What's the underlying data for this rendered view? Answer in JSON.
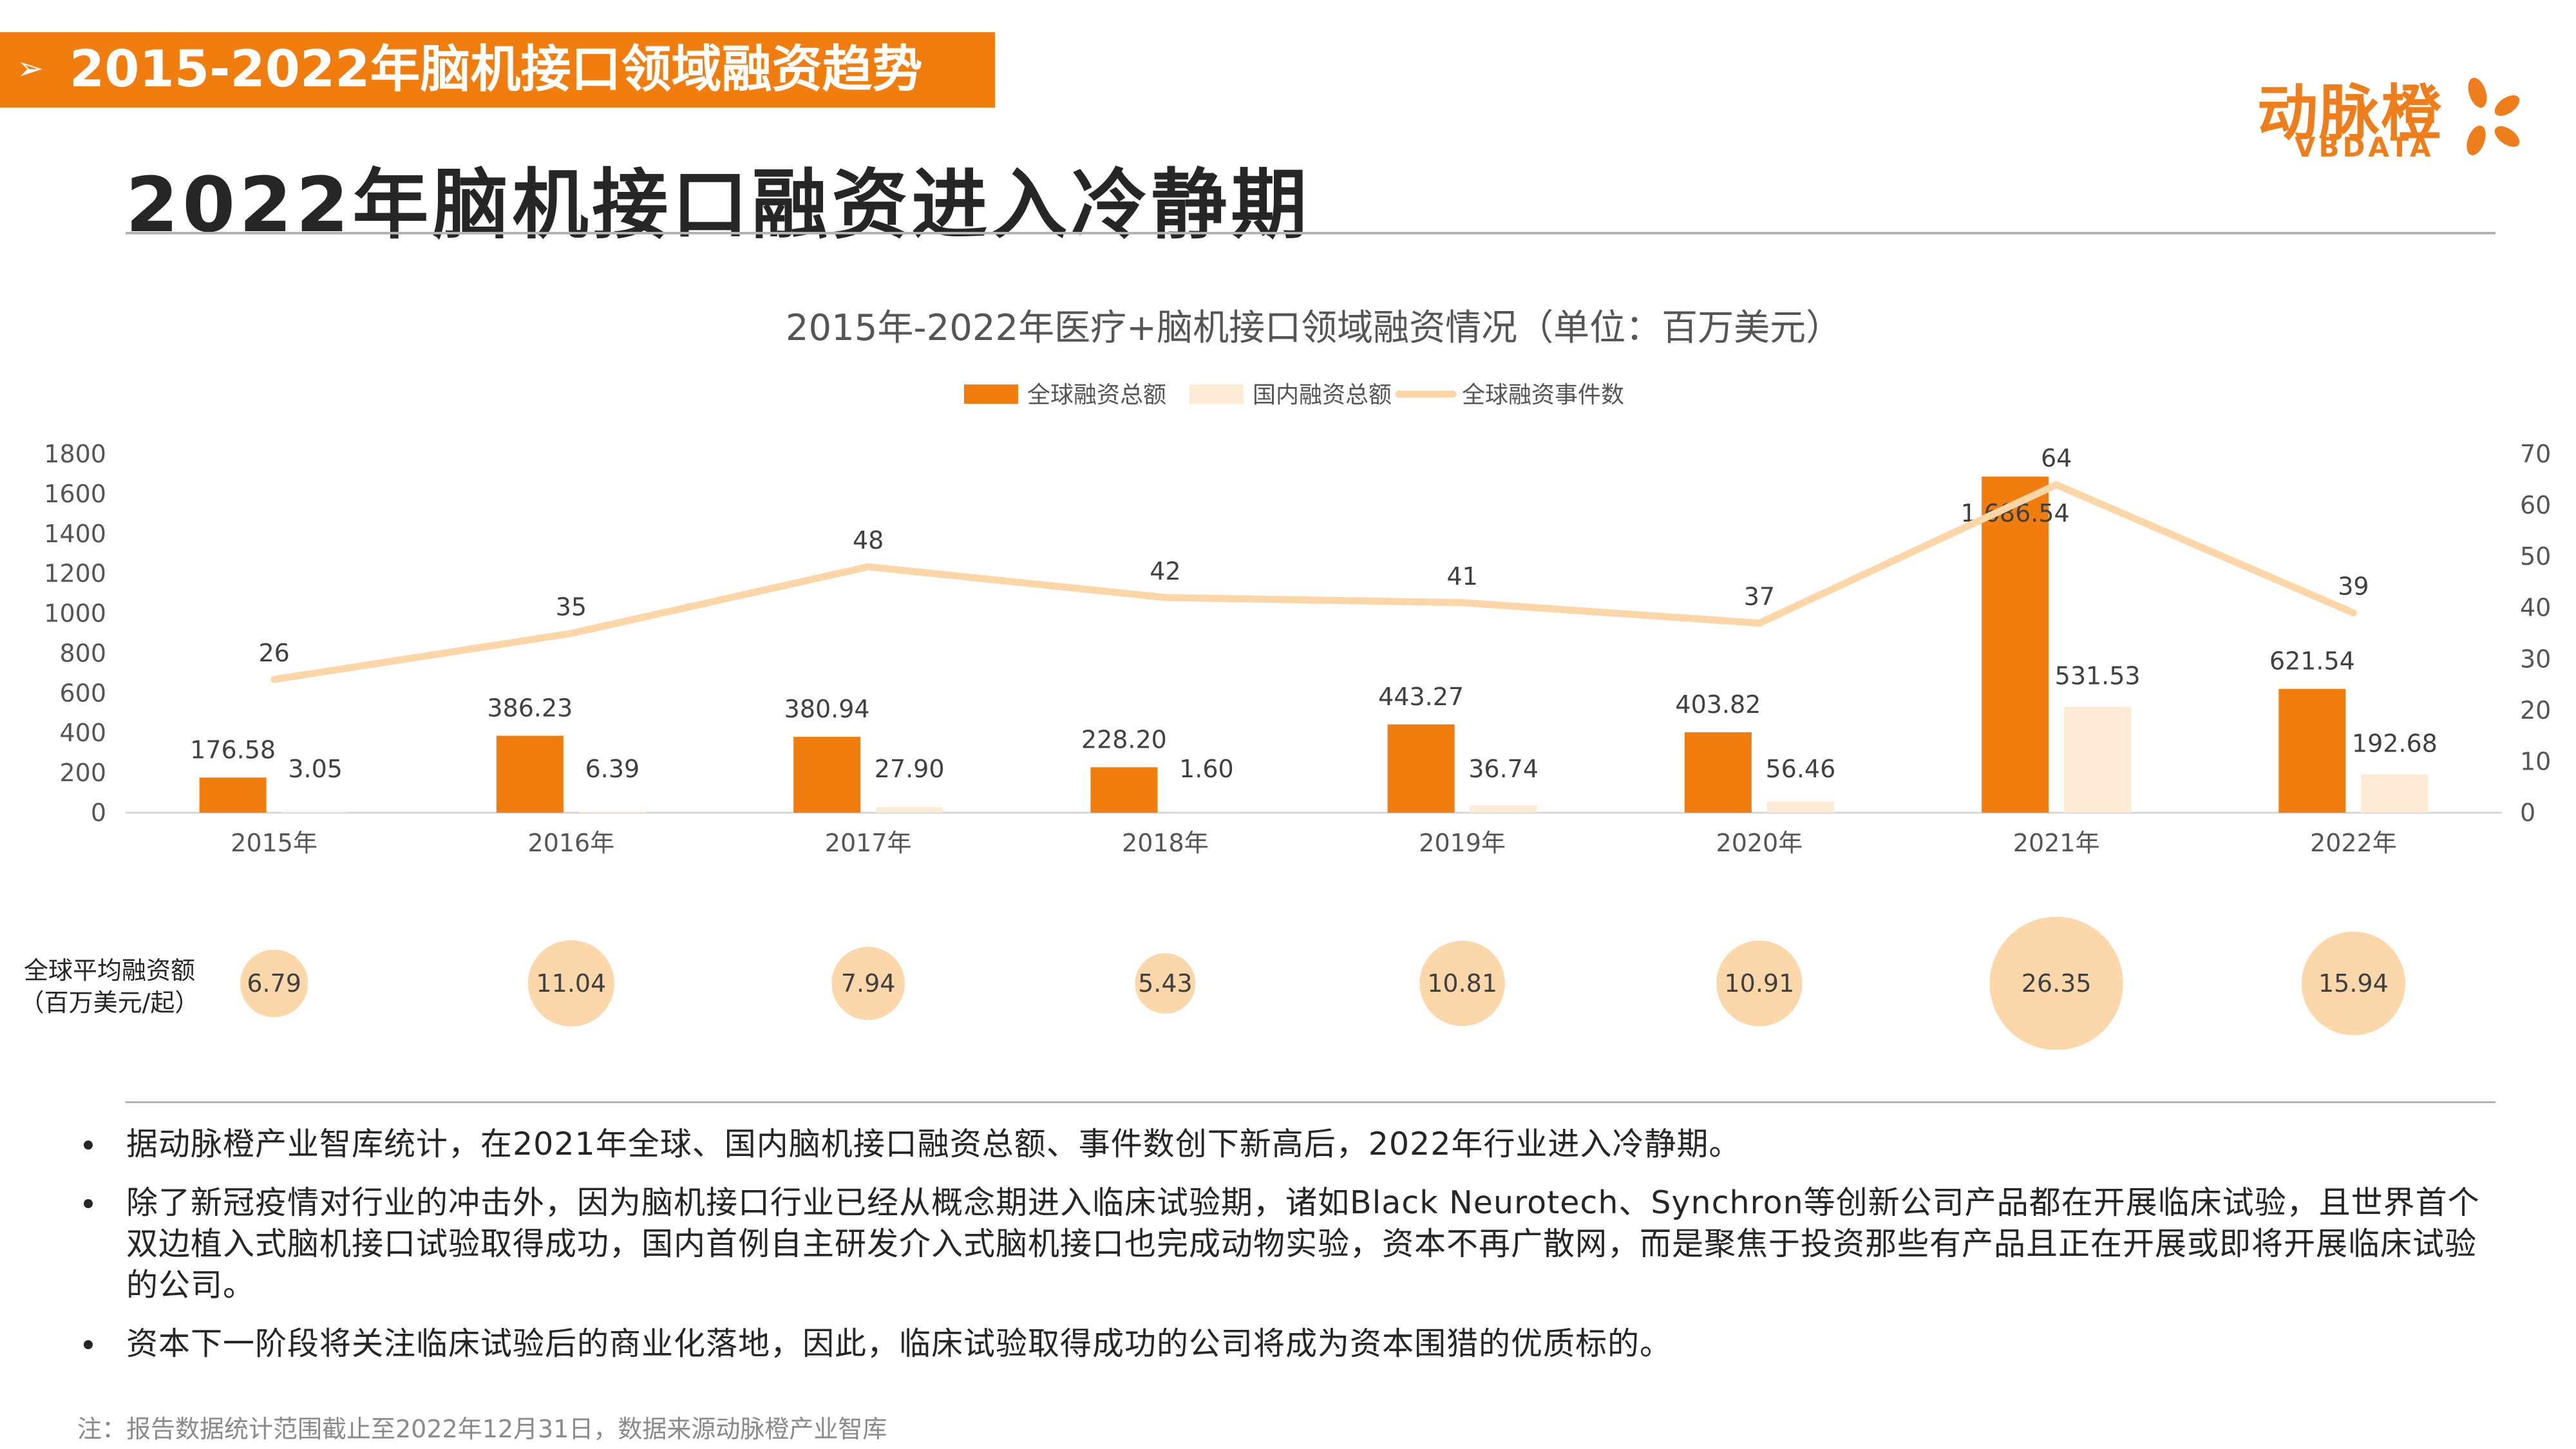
{
  "header": {
    "section_title": "2015-2022年脑机接口领域融资趋势",
    "arrow_glyph": "➢",
    "headline": "2022年脑机接口融资进入冷静期"
  },
  "logo": {
    "name_cn": "动脉橙",
    "name_en": "VBDATA"
  },
  "colors": {
    "accent": "#f07d0e",
    "domestic": "#fdebd6",
    "line": "#fcd6a6",
    "bubble": "#fbd7a9"
  },
  "chart_data": {
    "type": "bar",
    "title": "2015年-2022年医疗+脑机接口领域融资情况（单位：百万美元）",
    "categories": [
      "2015年",
      "2016年",
      "2017年",
      "2018年",
      "2019年",
      "2020年",
      "2021年",
      "2022年"
    ],
    "series": [
      {
        "name": "全球融资总额",
        "type": "bar",
        "axis": "left",
        "color": "#f07d0e",
        "values": [
          176.58,
          386.23,
          380.94,
          228.2,
          443.27,
          403.82,
          1686.54,
          621.54
        ],
        "labels": [
          "176.58",
          "386.23",
          "380.94",
          "228.20",
          "443.27",
          "403.82",
          "1,686.54",
          "621.54"
        ]
      },
      {
        "name": "国内融资总额",
        "type": "bar",
        "axis": "left",
        "color": "#fdebd6",
        "values": [
          3.05,
          6.39,
          27.9,
          1.6,
          36.74,
          56.46,
          531.53,
          192.68
        ],
        "labels": [
          "3.05",
          "6.39",
          "27.90",
          "1.60",
          "36.74",
          "56.46",
          "531.53",
          "192.68"
        ]
      },
      {
        "name": "全球融资事件数",
        "type": "line",
        "axis": "right",
        "color": "#fcd6a6",
        "values": [
          26,
          35,
          48,
          42,
          41,
          37,
          64,
          39
        ],
        "labels": [
          "26",
          "35",
          "48",
          "42",
          "41",
          "37",
          "64",
          "39"
        ]
      }
    ],
    "y_left": {
      "min": 0,
      "max": 1800,
      "ticks": [
        "0",
        "200",
        "400",
        "600",
        "800",
        "1000",
        "1200",
        "1400",
        "1600",
        "1800"
      ]
    },
    "y_right": {
      "min": 0,
      "max": 70,
      "ticks": [
        "0",
        "10",
        "20",
        "30",
        "40",
        "50",
        "60",
        "70"
      ]
    },
    "legend_position": "top",
    "grid": false,
    "average": {
      "label_line1": "全球平均融资额",
      "label_line2": "（百万美元/起）",
      "values": [
        6.79,
        11.04,
        7.94,
        5.43,
        10.81,
        10.91,
        26.35,
        15.94
      ],
      "labels": [
        "6.79",
        "11.04",
        "7.94",
        "5.43",
        "10.81",
        "10.91",
        "26.35",
        "15.94"
      ]
    }
  },
  "bullets": [
    "据动脉橙产业智库统计，在2021年全球、国内脑机接口融资总额、事件数创下新高后，2022年行业进入冷静期。",
    "除了新冠疫情对行业的冲击外，因为脑机接口行业已经从概念期进入临床试验期，诸如Black Neurotech、Synchron等创新公司产品都在开展临床试验，且世界首个双边植入式脑机接口试验取得成功，国内首例自主研发介入式脑机接口也完成动物实验，资本不再广散网，而是聚焦于投资那些有产品且正在开展或即将开展临床试验的公司。",
    "资本下一阶段将关注临床试验后的商业化落地，因此，临床试验取得成功的公司将成为资本围猎的优质标的。"
  ],
  "footnote": "注：报告数据统计范围截止至2022年12月31日，数据来源动脉橙产业智库"
}
